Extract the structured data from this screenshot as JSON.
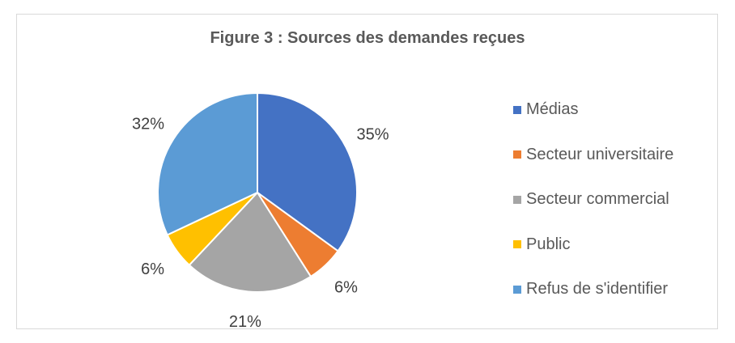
{
  "chart_data": {
    "type": "pie",
    "title": "Figure 3 : Sources des demandes reçues",
    "categories": [
      "Médias",
      "Secteur universitaire",
      "Secteur commercial",
      "Public",
      "Refus de s'identifier"
    ],
    "values": [
      35,
      6,
      21,
      6,
      32
    ],
    "labels": [
      "35%",
      "6%",
      "21%",
      "6%",
      "32%"
    ],
    "colors": [
      "#4472C4",
      "#ED7D31",
      "#A5A5A5",
      "#FFC000",
      "#5B9BD5"
    ],
    "legend_position": "right"
  }
}
